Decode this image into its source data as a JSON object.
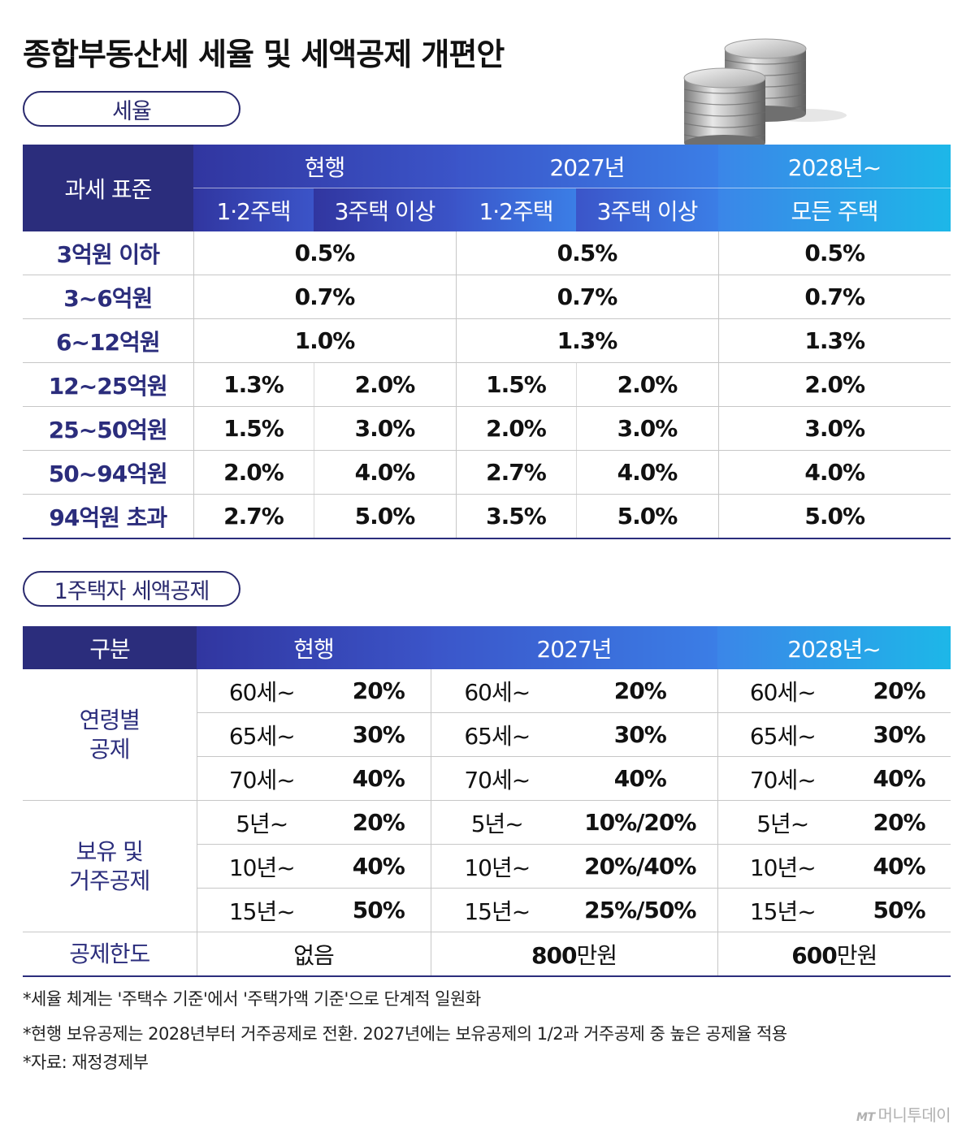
{
  "title": "종합부동산세 세율 및 세액공제 개편안",
  "section1": {
    "label": "세율",
    "header": {
      "category": "과세 표준",
      "groups": [
        "현행",
        "2027년",
        "2028년~"
      ],
      "sub": [
        "1·2주택",
        "3주택 이상",
        "1·2주택",
        "3주택 이상",
        "모든 주택"
      ]
    },
    "rows": [
      {
        "bracket": "3억원 이하",
        "cur": "0.5%",
        "y27": "0.5%",
        "y28": "0.5%"
      },
      {
        "bracket": "3~6억원",
        "cur": "0.7%",
        "y27": "0.7%",
        "y28": "0.7%"
      },
      {
        "bracket": "6~12억원",
        "cur": "1.0%",
        "y27": "1.3%",
        "y28": "1.3%"
      },
      {
        "bracket": "12~25억원",
        "cur_a": "1.3%",
        "cur_b": "2.0%",
        "y27_a": "1.5%",
        "y27_b": "2.0%",
        "y28": "2.0%"
      },
      {
        "bracket": "25~50억원",
        "cur_a": "1.5%",
        "cur_b": "3.0%",
        "y27_a": "2.0%",
        "y27_b": "3.0%",
        "y28": "3.0%"
      },
      {
        "bracket": "50~94억원",
        "cur_a": "2.0%",
        "cur_b": "4.0%",
        "y27_a": "2.7%",
        "y27_b": "4.0%",
        "y28": "4.0%"
      },
      {
        "bracket": "94억원 초과",
        "cur_a": "2.7%",
        "cur_b": "5.0%",
        "y27_a": "3.5%",
        "y27_b": "5.0%",
        "y28": "5.0%"
      }
    ]
  },
  "section2": {
    "label": "1주택자 세액공제",
    "header": {
      "category": "구분",
      "groups": [
        "현행",
        "2027년",
        "2028년~"
      ]
    },
    "age_group": "연령별\n공제",
    "age_rows": [
      {
        "cond": "60세~",
        "cur": "20%",
        "y27": "20%",
        "y28": "20%"
      },
      {
        "cond": "65세~",
        "cur": "30%",
        "y27": "30%",
        "y28": "30%"
      },
      {
        "cond": "70세~",
        "cur": "40%",
        "y27": "40%",
        "y28": "40%"
      }
    ],
    "hold_group": "보유 및\n거주공제",
    "hold_rows": [
      {
        "cond": "5년~",
        "cur": "20%",
        "y27": "10%/20%",
        "y28": "20%"
      },
      {
        "cond": "10년~",
        "cur": "40%",
        "y27": "20%/40%",
        "y28": "40%"
      },
      {
        "cond": "15년~",
        "cur": "50%",
        "y27": "25%/50%",
        "y28": "50%"
      }
    ],
    "limit": {
      "label": "공제한도",
      "cur": "없음",
      "y27_num": "800",
      "y27_unit": "만원",
      "y28_num": "600",
      "y28_unit": "만원"
    }
  },
  "notes": [
    "*세율 체계는 '주택수 기준'에서 '주택가액 기준'으로 단계적 일원화",
    "*현행 보유공제는 2028년부터 거주공제로 전환. 2027년에는 보유공제의 1/2과 거주공제 중 높은 공제율 적용",
    "*자료: 재정경제부"
  ],
  "logo": {
    "mark": "MT",
    "text": "머니투데이"
  },
  "icons": {
    "coins": "coin-stack-icon"
  }
}
